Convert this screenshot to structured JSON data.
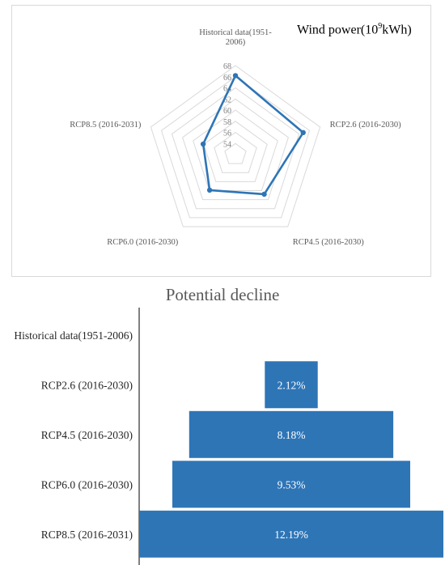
{
  "chart_data": [
    {
      "type": "radar",
      "title": "Wind power(",
      "title_unit_base": "10",
      "title_unit_exp": "9",
      "title_unit_rest": "kWh)",
      "categories": [
        "Historical data(1951-2006)",
        "RCP2.6 (2016-2030)",
        "RCP4.5 (2016-2030)",
        "RCP6.0 (2016-2030)",
        "RCP8.5 (2016-2031)"
      ],
      "category_label_lines": [
        [
          "Historical data(1951-",
          "2006)"
        ],
        [
          "RCP2.6 (2016-2030)"
        ],
        [
          "RCP4.5 (2016-2030)"
        ],
        [
          "RCP6.0 (2016-2030)"
        ],
        [
          "RCP8.5 (2016-2031)"
        ]
      ],
      "rlim": [
        52,
        68
      ],
      "ticks": [
        54,
        56,
        58,
        60,
        62,
        64,
        66,
        68
      ],
      "values": [
        66.2,
        64.8,
        60.8,
        59.9,
        58.1
      ],
      "color": "#2e75b6",
      "grid": true
    },
    {
      "type": "bar",
      "orientation": "horizontal-funnel",
      "title": "Potential decline",
      "categories": [
        "Historical data(1951-2006)",
        "RCP2.6 (2016-2030)",
        "RCP4.5 (2016-2030)",
        "RCP6.0 (2016-2030)",
        "RCP8.5 (2016-2031)"
      ],
      "values": [
        0,
        2.12,
        8.18,
        9.53,
        12.19
      ],
      "data_labels": [
        "",
        "2.12%",
        "8.18%",
        "9.53%",
        "12.19%"
      ],
      "color": "#2e75b6",
      "label_color": "#ffffff"
    }
  ]
}
